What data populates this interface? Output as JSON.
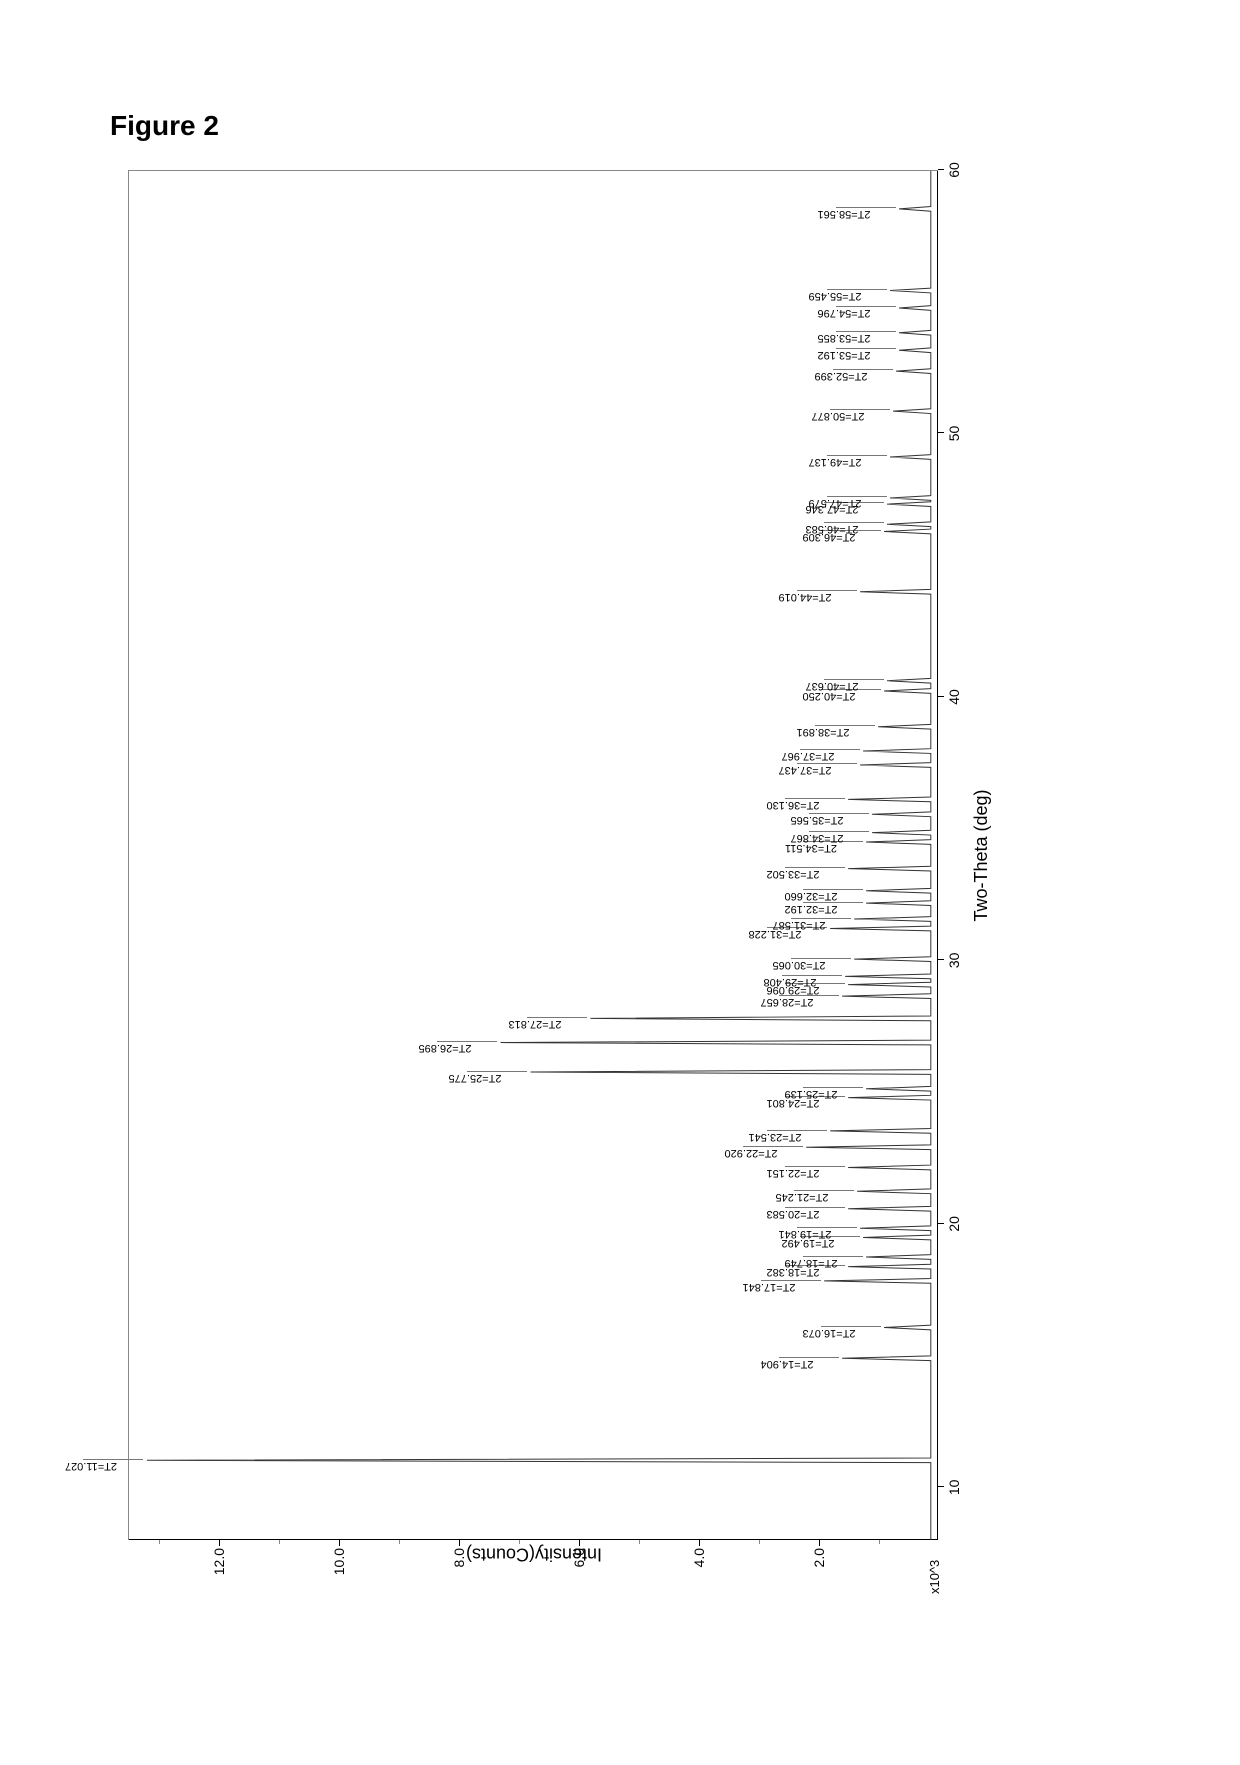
{
  "figure_title": "Figure 2",
  "chart": {
    "type": "xrd-spectrum",
    "xlabel": "Two-Theta (deg)",
    "ylabel": "Intensity(Counts)",
    "xlim": [
      8,
      60
    ],
    "ylim": [
      0,
      13500
    ],
    "x_ticks": [
      10,
      20,
      30,
      40,
      50,
      60
    ],
    "y_major_ticks": [
      2000,
      4000,
      6000,
      8000,
      10000,
      12000
    ],
    "y_major_tick_labels": [
      "2.0",
      "4.0",
      "6.0",
      "8.0",
      "10.0",
      "12.0"
    ],
    "y_exponent_label": "x10^3",
    "y_minor_ticks": [
      1000,
      3000,
      5000,
      7000,
      9000,
      11000,
      13000
    ],
    "background_color": "#ffffff",
    "axis_color": "#000000",
    "trace_color": "#333333",
    "peak_tick_color": "#777777",
    "label_fontsize": 18,
    "tick_fontsize": 14,
    "peak_label_fontsize": 11,
    "baseline_intensity": 120,
    "peaks": [
      {
        "two_theta": 11.027,
        "intensity": 13200,
        "label": "2T=11.027"
      },
      {
        "two_theta": 14.904,
        "intensity": 1600,
        "label": "2T=14.904"
      },
      {
        "two_theta": 16.073,
        "intensity": 900,
        "label": "2T=16.073"
      },
      {
        "two_theta": 17.841,
        "intensity": 1900,
        "label": "2T=17.841"
      },
      {
        "two_theta": 18.382,
        "intensity": 1500,
        "label": "2T=18.382"
      },
      {
        "two_theta": 18.749,
        "intensity": 1200,
        "label": "2T=18.749"
      },
      {
        "two_theta": 19.492,
        "intensity": 1250,
        "label": "2T=19.492"
      },
      {
        "two_theta": 19.841,
        "intensity": 1300,
        "label": "2T=19.841"
      },
      {
        "two_theta": 20.583,
        "intensity": 1500,
        "label": "2T=20.583"
      },
      {
        "two_theta": 21.245,
        "intensity": 1350,
        "label": "2T=21.245"
      },
      {
        "two_theta": 22.151,
        "intensity": 1500,
        "label": "2T=22.151"
      },
      {
        "two_theta": 22.92,
        "intensity": 2200,
        "label": "2T=22.920"
      },
      {
        "two_theta": 23.541,
        "intensity": 1800,
        "label": "2T=23.541"
      },
      {
        "two_theta": 24.801,
        "intensity": 1500,
        "label": "2T=24.801"
      },
      {
        "two_theta": 25.139,
        "intensity": 1200,
        "label": "2T=25.139"
      },
      {
        "two_theta": 25.775,
        "intensity": 6800,
        "label": "2T=25.775"
      },
      {
        "two_theta": 26.895,
        "intensity": 7300,
        "label": "2T=26.895"
      },
      {
        "two_theta": 27.813,
        "intensity": 5800,
        "label": "2T=27.813"
      },
      {
        "two_theta": 28.657,
        "intensity": 1600,
        "label": "2T=28.657"
      },
      {
        "two_theta": 29.096,
        "intensity": 1500,
        "label": "2T=29.096"
      },
      {
        "two_theta": 29.408,
        "intensity": 1550,
        "label": "2T=29.408"
      },
      {
        "two_theta": 30.065,
        "intensity": 1400,
        "label": "2T=30.065"
      },
      {
        "two_theta": 31.228,
        "intensity": 1800,
        "label": "2T=31.228"
      },
      {
        "two_theta": 31.587,
        "intensity": 1400,
        "label": "2T=31.587"
      },
      {
        "two_theta": 32.192,
        "intensity": 1200,
        "label": "2T=32.192"
      },
      {
        "two_theta": 32.66,
        "intensity": 1200,
        "label": "2T=32.660"
      },
      {
        "two_theta": 33.502,
        "intensity": 1500,
        "label": "2T=33.502"
      },
      {
        "two_theta": 34.511,
        "intensity": 1200,
        "label": "2T=34.511"
      },
      {
        "two_theta": 34.867,
        "intensity": 1100,
        "label": "2T=34.867"
      },
      {
        "two_theta": 35.565,
        "intensity": 1100,
        "label": "2T=35.565"
      },
      {
        "two_theta": 36.13,
        "intensity": 1500,
        "label": "2T=36.130"
      },
      {
        "two_theta": 37.437,
        "intensity": 1300,
        "label": "2T=37.437"
      },
      {
        "two_theta": 37.967,
        "intensity": 1250,
        "label": "2T=37.967"
      },
      {
        "two_theta": 38.891,
        "intensity": 1000,
        "label": "2T=38.891"
      },
      {
        "two_theta": 40.25,
        "intensity": 900,
        "label": "2T=40.250"
      },
      {
        "two_theta": 40.637,
        "intensity": 850,
        "label": "2T=40.637"
      },
      {
        "two_theta": 44.019,
        "intensity": 1300,
        "label": "2T=44.019"
      },
      {
        "two_theta": 46.309,
        "intensity": 900,
        "label": "2T=46.309"
      },
      {
        "two_theta": 46.583,
        "intensity": 850,
        "label": "2T=46.583"
      },
      {
        "two_theta": 47.346,
        "intensity": 850,
        "label": "2T=47.346"
      },
      {
        "two_theta": 47.579,
        "intensity": 800,
        "label": "2T=47.579"
      },
      {
        "two_theta": 49.137,
        "intensity": 800,
        "label": "2T=49.137"
      },
      {
        "two_theta": 50.877,
        "intensity": 750,
        "label": "2T=50.877"
      },
      {
        "two_theta": 52.399,
        "intensity": 700,
        "label": "2T=52.399"
      },
      {
        "two_theta": 53.192,
        "intensity": 650,
        "label": "2T=53.192"
      },
      {
        "two_theta": 53.855,
        "intensity": 650,
        "label": "2T=53.855"
      },
      {
        "two_theta": 54.796,
        "intensity": 650,
        "label": "2T=54.796"
      },
      {
        "two_theta": 55.459,
        "intensity": 800,
        "label": "2T=55.459"
      },
      {
        "two_theta": 58.561,
        "intensity": 650,
        "label": "2T=58.561"
      }
    ]
  }
}
